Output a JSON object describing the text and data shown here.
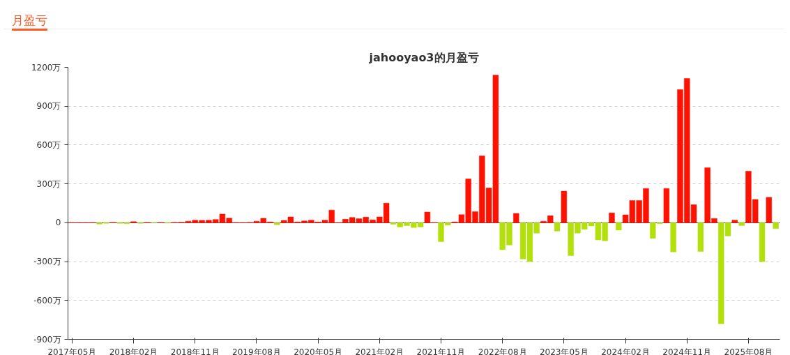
{
  "chart_data": {
    "type": "bar",
    "title": "jahooyao3的月盈亏",
    "annotations": [
      "月盈亏"
    ],
    "categories": [
      "2017年05月",
      null,
      null,
      null,
      null,
      null,
      null,
      null,
      null,
      "2018年02月",
      null,
      null,
      null,
      null,
      null,
      null,
      null,
      null,
      "2018年11月",
      null,
      null,
      null,
      null,
      null,
      null,
      null,
      null,
      "2019年08月",
      null,
      null,
      null,
      null,
      null,
      null,
      null,
      null,
      "2020年05月",
      null,
      null,
      null,
      null,
      null,
      null,
      null,
      null,
      "2021年02月",
      null,
      null,
      null,
      null,
      null,
      null,
      null,
      null,
      "2021年11月",
      null,
      null,
      null,
      null,
      null,
      null,
      null,
      null,
      "2022年08月",
      null,
      null,
      null,
      null,
      null,
      null,
      null,
      null,
      "2023年05月",
      null,
      null,
      null,
      null,
      null,
      null,
      null,
      null,
      "2024年02月",
      null,
      null,
      null,
      null,
      null,
      null,
      null,
      null,
      "2024年11月",
      null,
      null,
      null,
      null,
      null,
      null,
      null,
      null,
      "2025年08月",
      null,
      null,
      null,
      null
    ],
    "values": [
      0,
      0,
      0,
      0,
      -10,
      -5,
      2,
      -5,
      -8,
      8,
      -5,
      2,
      -2,
      1,
      -3,
      2,
      3,
      12,
      20,
      18,
      20,
      25,
      67,
      35,
      1,
      0,
      2,
      12,
      34,
      6,
      -15,
      18,
      45,
      6,
      14,
      20,
      6,
      20,
      98,
      0,
      27,
      41,
      31,
      43,
      22,
      45,
      151,
      -12,
      -33,
      -22,
      -37,
      -33,
      83,
      0,
      -146,
      -18,
      6,
      62,
      338,
      86,
      516,
      268,
      1140,
      -208,
      -172,
      72,
      -280,
      -300,
      -80,
      12,
      54,
      -64,
      244,
      -254,
      -80,
      -51,
      -25,
      -133,
      -139,
      76,
      -57,
      61,
      172,
      172,
      265,
      -120,
      -8,
      265,
      -225,
      1028,
      1114,
      139,
      -222,
      425,
      33,
      -780,
      -102,
      20,
      -22,
      398,
      180,
      -300,
      196,
      -45
    ],
    "colors": [
      "#ff1100",
      "#ff1100",
      "#ff1100",
      "#ff1100",
      "#b3e00a",
      "#b3e00a",
      "#ff1100",
      "#b3e00a",
      "#b3e00a",
      "#ff1100",
      "#b3e00a",
      "#ff1100",
      "#b3e00a",
      "#ff1100",
      "#b3e00a",
      "#ff1100",
      "#ff1100",
      "#ff1100",
      "#ff1100",
      "#ff1100",
      "#ff1100",
      "#ff1100",
      "#ff1100",
      "#ff1100",
      "#ff1100",
      "#ff1100",
      "#ff1100",
      "#ff1100",
      "#ff1100",
      "#ff1100",
      "#b3e00a",
      "#ff1100",
      "#ff1100",
      "#ff1100",
      "#ff1100",
      "#ff1100",
      "#ff1100",
      "#ff1100",
      "#ff1100",
      "#ff1100",
      "#ff1100",
      "#ff1100",
      "#ff1100",
      "#ff1100",
      "#ff1100",
      "#ff1100",
      "#ff1100",
      "#b3e00a",
      "#b3e00a",
      "#b3e00a",
      "#b3e00a",
      "#b3e00a",
      "#ff1100",
      "#ff1100",
      "#b3e00a",
      "#b3e00a",
      "#ff1100",
      "#ff1100",
      "#ff1100",
      "#ff1100",
      "#ff1100",
      "#ff1100",
      "#ff1100",
      "#b3e00a",
      "#b3e00a",
      "#ff1100",
      "#b3e00a",
      "#b3e00a",
      "#b3e00a",
      "#ff1100",
      "#ff1100",
      "#b3e00a",
      "#ff1100",
      "#b3e00a",
      "#b3e00a",
      "#b3e00a",
      "#b3e00a",
      "#b3e00a",
      "#b3e00a",
      "#ff1100",
      "#b3e00a",
      "#ff1100",
      "#ff1100",
      "#ff1100",
      "#ff1100",
      "#b3e00a",
      "#b3e00a",
      "#ff1100",
      "#b3e00a",
      "#ff1100",
      "#ff1100",
      "#ff1100",
      "#b3e00a",
      "#ff1100",
      "#ff1100",
      "#b3e00a",
      "#b3e00a",
      "#ff1100",
      "#b3e00a",
      "#ff1100",
      "#ff1100",
      "#b3e00a",
      "#ff1100",
      "#b3e00a"
    ],
    "ylim": [
      -900,
      1200
    ],
    "yticks": [
      {
        "value": -900,
        "label": "-900万"
      },
      {
        "value": -600,
        "label": "-600万"
      },
      {
        "value": -300,
        "label": "-300万"
      },
      {
        "value": 0,
        "label": "0"
      },
      {
        "value": 300,
        "label": "300万"
      },
      {
        "value": 600,
        "label": "600万"
      },
      {
        "value": 900,
        "label": "900万"
      },
      {
        "value": 1200,
        "label": "1200万"
      }
    ],
    "grid": "y"
  }
}
